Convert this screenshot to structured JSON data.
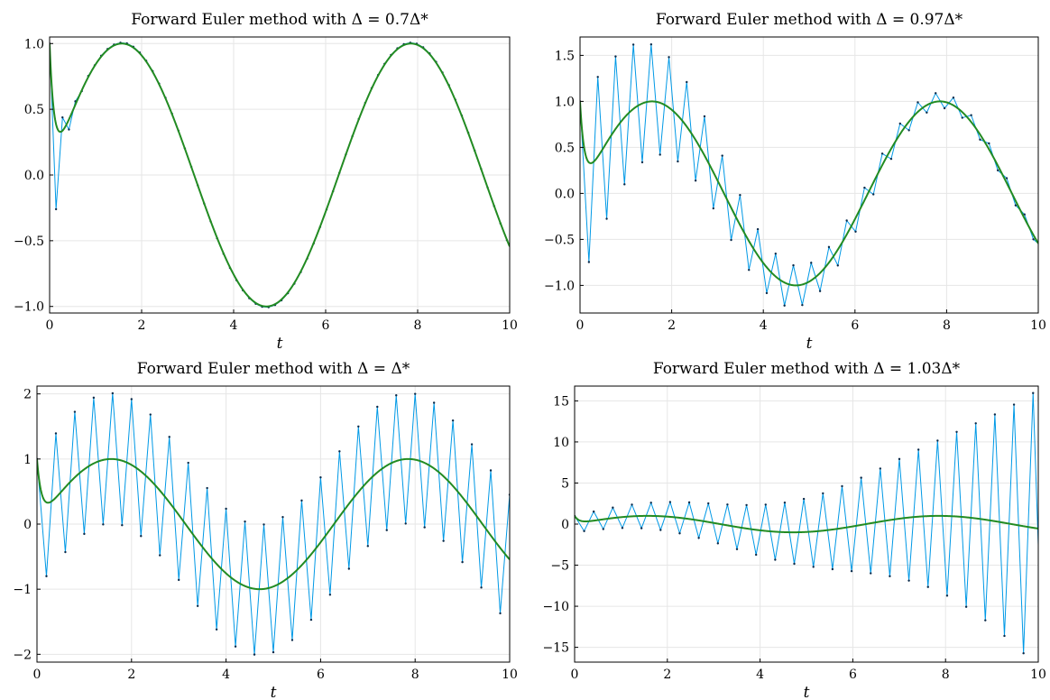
{
  "chart_data": [
    {
      "type": "line",
      "title": "Forward Euler method with Δ = 0.7Δ*",
      "ratio": 0.7,
      "xlabel": "t",
      "xlim": [
        0,
        10
      ],
      "ylim": [
        -1.05,
        1.05
      ],
      "xticks": [
        0,
        2,
        4,
        6,
        8,
        10
      ],
      "xtick_labels": [
        "0",
        "2",
        "4",
        "6",
        "8",
        "10"
      ],
      "yticks": [
        -1.0,
        -0.5,
        0.0,
        0.5,
        1.0
      ],
      "ytick_labels": [
        "−1.0",
        "−0.5",
        "0.0",
        "0.5",
        "1.0"
      ],
      "grid": true,
      "legend": "none",
      "series": [
        {
          "style": "euler-points",
          "color": "#0099e6"
        },
        {
          "style": "exact-solution",
          "color": "#228b22"
        }
      ]
    },
    {
      "type": "line",
      "title": "Forward Euler method with Δ = 0.97Δ*",
      "ratio": 0.97,
      "xlabel": "t",
      "xlim": [
        0,
        10
      ],
      "ylim": [
        -1.3,
        1.7
      ],
      "xticks": [
        0,
        2,
        4,
        6,
        8,
        10
      ],
      "xtick_labels": [
        "0",
        "2",
        "4",
        "6",
        "8",
        "10"
      ],
      "yticks": [
        -1.0,
        -0.5,
        0.0,
        0.5,
        1.0,
        1.5
      ],
      "ytick_labels": [
        "−1.0",
        "−0.5",
        "0.0",
        "0.5",
        "1.0",
        "1.5"
      ],
      "grid": true,
      "legend": "none",
      "series": [
        {
          "style": "euler-points",
          "color": "#0099e6"
        },
        {
          "style": "exact-solution",
          "color": "#228b22"
        }
      ]
    },
    {
      "type": "line",
      "title": "Forward Euler method with Δ = Δ*",
      "ratio": 1.0,
      "xlabel": "t",
      "xlim": [
        0,
        10
      ],
      "ylim": [
        -2.12,
        2.12
      ],
      "xticks": [
        0,
        2,
        4,
        6,
        8,
        10
      ],
      "xtick_labels": [
        "0",
        "2",
        "4",
        "6",
        "8",
        "10"
      ],
      "yticks": [
        -2,
        -1,
        0,
        1,
        2
      ],
      "ytick_labels": [
        "−2",
        "−1",
        "0",
        "1",
        "2"
      ],
      "grid": true,
      "legend": "none",
      "series": [
        {
          "style": "euler-points",
          "color": "#0099e6"
        },
        {
          "style": "exact-solution",
          "color": "#228b22"
        }
      ]
    },
    {
      "type": "line",
      "title": "Forward Euler method with Δ = 1.03Δ*",
      "ratio": 1.03,
      "xlabel": "t",
      "xlim": [
        0,
        10
      ],
      "ylim": [
        -16.8,
        16.8
      ],
      "xticks": [
        0,
        2,
        4,
        6,
        8,
        10
      ],
      "xtick_labels": [
        "0",
        "2",
        "4",
        "6",
        "8",
        "10"
      ],
      "yticks": [
        -15,
        -10,
        -5,
        0,
        5,
        10,
        15
      ],
      "ytick_labels": [
        "−15",
        "−10",
        "−5",
        "0",
        "5",
        "10",
        "15"
      ],
      "grid": true,
      "legend": "none",
      "series": [
        {
          "style": "euler-points",
          "color": "#0099e6"
        },
        {
          "style": "exact-solution",
          "color": "#228b22"
        }
      ]
    }
  ]
}
